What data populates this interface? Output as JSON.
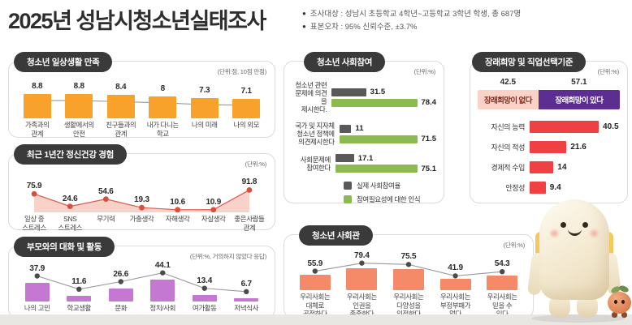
{
  "page": {
    "title": "2025년 성남시청소년실태조사",
    "notes": [
      "조사대상 : 성남시 초등학교 4학년~고등학교 3학년 학생, 총 687명",
      "표본오차 : 95% 신뢰수준, ±3.7%"
    ]
  },
  "colors": {
    "badge_bg": "#3A3A3A",
    "orange_bar": "#F9A22B",
    "area_fill": "#F7C9C0",
    "area_line": "#DE5A49",
    "area_dot": "#D94F3D",
    "purple_bar": "#C478D2",
    "gray_bar": "#595959",
    "green_bar": "#8CBA51",
    "red_bar": "#EF4043",
    "coral_bar": "#F58A68",
    "hope_no_bg": "#FAD2C8",
    "hope_no_text": "#7E2F1E",
    "hope_yes_bg": "#5C2E91",
    "hope_yes_text": "#FFFFFF",
    "dot": "#4B4B4B",
    "line": "#999999"
  },
  "chart_data": [
    {
      "id": "chart-satisfaction",
      "type": "bar",
      "title": "청소년 일상생활 만족",
      "unit": "(단위:점, 10점 만점)",
      "categories": [
        "가족과의\n관계",
        "생활에서의\n안전",
        "친구들과의\n관계",
        "내가 다니는\n학교",
        "나의 미래",
        "나의 외모"
      ],
      "values": [
        8.8,
        8.8,
        8.4,
        8,
        7.3,
        7.1
      ],
      "ylim": [
        0,
        10
      ],
      "bar_color": "#F9A22B",
      "overlay": "line-with-dots"
    },
    {
      "id": "chart-mental",
      "type": "area",
      "title": "최근 1년간 정신건강 경험",
      "unit": "(단위:%)",
      "categories": [
        "일상 중\n스트레스",
        "SNS\n스트레스",
        "무기력",
        "가출생각",
        "자해생각",
        "자살생각",
        "좋은사람들\n관계"
      ],
      "values": [
        75.9,
        24.6,
        54.6,
        19.3,
        10.6,
        10.9,
        91.8
      ],
      "ylim": [
        0,
        100
      ],
      "fill_color": "#F7C9C0",
      "dot_color": "#D94F3D"
    },
    {
      "id": "chart-parent",
      "type": "bar",
      "title": "부모와의 대화 및 활동",
      "unit": "(단위:%, 거의하지 않았다 응답)",
      "categories": [
        "나의 고민",
        "학교생활",
        "문화",
        "정치/사회",
        "여가활동",
        "저녁식사"
      ],
      "values": [
        37.9,
        11.6,
        26.6,
        44.1,
        13.4,
        6.7
      ],
      "ylim": [
        0,
        50
      ],
      "bar_color": "#C478D2",
      "overlay": "line-with-dots"
    },
    {
      "id": "chart-participation",
      "type": "grouped-horizontal-bar",
      "title": "청소년 사회참여",
      "unit": "(단위:%)",
      "categories": [
        "청소년 관련\n문제에 의견을\n제시한다.",
        "국가 및 지자체\n청소년 정책에\n의견제시한다",
        "사회문제에\n참여한다"
      ],
      "series": [
        {
          "name": "실제 사회참여율",
          "color": "#595959",
          "values": [
            31.5,
            11,
            17.1
          ]
        },
        {
          "name": "참여필요성에 대한 인식",
          "color": "#8CBA51",
          "values": [
            78.4,
            71.5,
            75.1
          ]
        }
      ],
      "xlim": [
        0,
        100
      ],
      "legend_position": "bottom"
    },
    {
      "id": "chart-career",
      "type": "split-bar-and-horizontal-bar",
      "title": "장래희망 및 직업선택기준",
      "unit": "(단위:%)",
      "split": [
        {
          "label": "장래희망이 없다",
          "value": 42.5,
          "color": "#FAD2C8",
          "text_color": "#7E2F1E"
        },
        {
          "label": "장래희망이 있다",
          "value": 57.1,
          "color": "#5C2E91",
          "text_color": "#FFFFFF"
        }
      ],
      "categories": [
        "자신의 능력",
        "자신의 적성",
        "경제적 수입",
        "안정성"
      ],
      "values": [
        40.5,
        21.6,
        14,
        9.4
      ],
      "bar_color": "#EF4043",
      "xlim": [
        0,
        50
      ]
    },
    {
      "id": "chart-socialview",
      "type": "bar",
      "title": "청소년 사회관",
      "unit": "(단위:%)",
      "categories": [
        "우리사회는\n대체로\n공정하다",
        "우리사회는\n인권을\n존중한다",
        "우리사회는\n다양성을\n인정한다",
        "우리사회는\n부정부패가\n없다",
        "우리사회는\n믿을 수\n있다"
      ],
      "values": [
        55.9,
        79.4,
        75.5,
        41.9,
        54.3
      ],
      "ylim": [
        0,
        100
      ],
      "bar_color": "#F58A68",
      "overlay": "line-with-dots"
    }
  ]
}
